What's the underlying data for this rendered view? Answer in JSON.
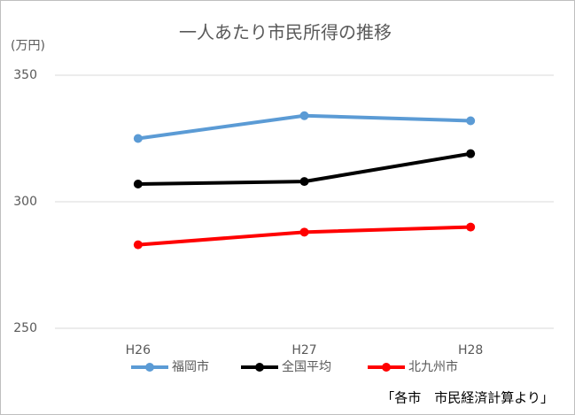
{
  "chart_data": {
    "type": "line",
    "title": "一人あたり市民所得の推移",
    "y_label": "(万円)",
    "source": "「各市　市民経済計算より」",
    "categories": [
      "H26",
      "H27",
      "H28"
    ],
    "series": [
      {
        "name": "福岡市",
        "color": "#5b9bd5",
        "values": [
          325,
          334,
          332
        ]
      },
      {
        "name": "全国平均",
        "color": "#000000",
        "values": [
          307,
          308,
          319
        ]
      },
      {
        "name": "北九州市",
        "color": "#ff0000",
        "values": [
          283,
          288,
          290
        ]
      }
    ],
    "ylim": [
      250,
      350
    ],
    "yticks": [
      250,
      300,
      350
    ],
    "grid": true
  }
}
